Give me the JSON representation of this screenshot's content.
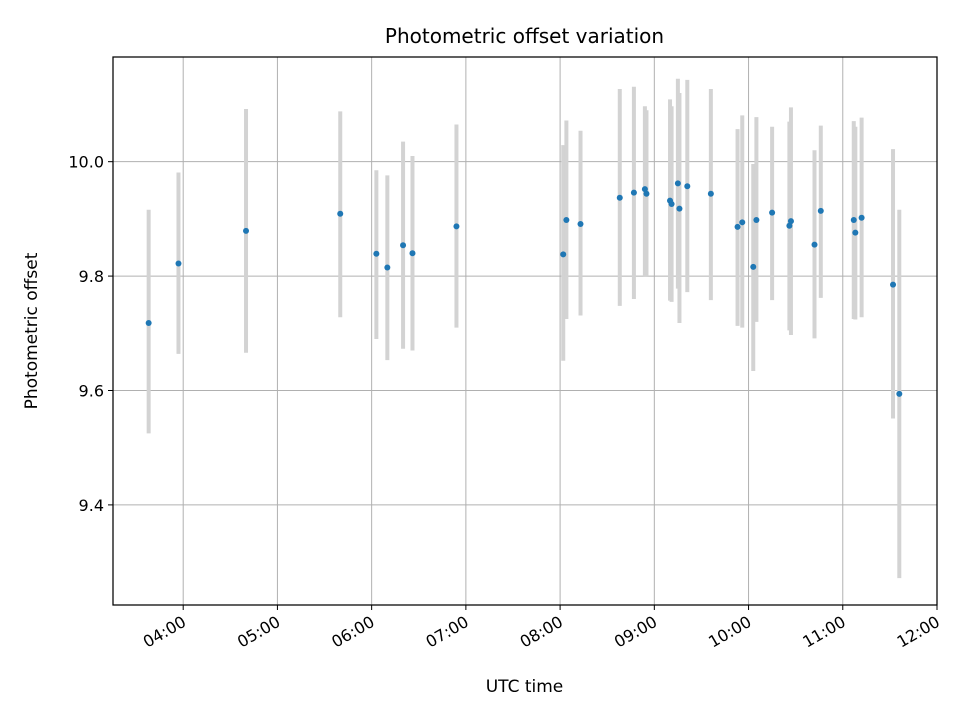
{
  "chart_data": {
    "type": "scatter",
    "title": "Photometric offset variation",
    "xlabel": "UTC time",
    "ylabel": "Photometric offset",
    "x_tick_labels": [
      "04:00",
      "05:00",
      "06:00",
      "07:00",
      "08:00",
      "09:00",
      "10:00",
      "11:00",
      "12:00"
    ],
    "y_tick_labels": [
      "9.4",
      "9.6",
      "9.8",
      "10.0"
    ],
    "x_ticks_hours": [
      4,
      5,
      6,
      7,
      8,
      9,
      10,
      11,
      12
    ],
    "y_ticks": [
      9.4,
      9.6,
      9.8,
      10.0
    ],
    "xlim_hours": [
      3.255,
      12.0
    ],
    "ylim": [
      9.225,
      10.183
    ],
    "grid": true,
    "colors": {
      "point": "#1f77b4",
      "errorbar": "#d3d3d3",
      "grid": "#b0b0b0"
    },
    "points": [
      {
        "t": "03:38",
        "y": 9.718,
        "err_low": 9.525,
        "err_high": 9.916
      },
      {
        "t": "03:57",
        "y": 9.822,
        "err_low": 9.664,
        "err_high": 9.981
      },
      {
        "t": "04:40",
        "y": 9.879,
        "err_low": 9.666,
        "err_high": 10.092
      },
      {
        "t": "05:40",
        "y": 9.909,
        "err_low": 9.728,
        "err_high": 10.088
      },
      {
        "t": "06:03",
        "y": 9.839,
        "err_low": 9.69,
        "err_high": 9.985
      },
      {
        "t": "06:10",
        "y": 9.815,
        "err_low": 9.653,
        "err_high": 9.976
      },
      {
        "t": "06:20",
        "y": 9.854,
        "err_low": 9.673,
        "err_high": 10.035
      },
      {
        "t": "06:26",
        "y": 9.84,
        "err_low": 9.67,
        "err_high": 10.01
      },
      {
        "t": "06:54",
        "y": 9.887,
        "err_low": 9.71,
        "err_high": 10.065
      },
      {
        "t": "08:02",
        "y": 9.838,
        "err_low": 9.652,
        "err_high": 10.029
      },
      {
        "t": "08:04",
        "y": 9.898,
        "err_low": 9.725,
        "err_high": 10.072
      },
      {
        "t": "08:13",
        "y": 9.891,
        "err_low": 9.731,
        "err_high": 10.054
      },
      {
        "t": "08:38",
        "y": 9.937,
        "err_low": 9.748,
        "err_high": 10.127
      },
      {
        "t": "08:47",
        "y": 9.946,
        "err_low": 9.76,
        "err_high": 10.131
      },
      {
        "t": "08:54",
        "y": 9.952,
        "err_low": 9.8,
        "err_high": 10.097
      },
      {
        "t": "08:55",
        "y": 9.944,
        "err_low": 9.8,
        "err_high": 10.09
      },
      {
        "t": "09:10",
        "y": 9.932,
        "err_low": 9.757,
        "err_high": 10.109
      },
      {
        "t": "09:11",
        "y": 9.926,
        "err_low": 9.755,
        "err_high": 10.097
      },
      {
        "t": "09:15",
        "y": 9.962,
        "err_low": 9.778,
        "err_high": 10.145
      },
      {
        "t": "09:16",
        "y": 9.918,
        "err_low": 9.718,
        "err_high": 10.12
      },
      {
        "t": "09:21",
        "y": 9.957,
        "err_low": 9.772,
        "err_high": 10.143
      },
      {
        "t": "09:36",
        "y": 9.944,
        "err_low": 9.758,
        "err_high": 10.127
      },
      {
        "t": "09:53",
        "y": 9.886,
        "err_low": 9.713,
        "err_high": 10.057
      },
      {
        "t": "09:56",
        "y": 9.894,
        "err_low": 9.71,
        "err_high": 10.081
      },
      {
        "t": "10:03",
        "y": 9.816,
        "err_low": 9.634,
        "err_high": 9.996
      },
      {
        "t": "10:05",
        "y": 9.898,
        "err_low": 9.72,
        "err_high": 10.078
      },
      {
        "t": "10:15",
        "y": 9.911,
        "err_low": 9.758,
        "err_high": 10.061
      },
      {
        "t": "10:26",
        "y": 9.888,
        "err_low": 9.705,
        "err_high": 10.07
      },
      {
        "t": "10:27",
        "y": 9.896,
        "err_low": 9.697,
        "err_high": 10.095
      },
      {
        "t": "10:42",
        "y": 9.855,
        "err_low": 9.691,
        "err_high": 10.02
      },
      {
        "t": "10:46",
        "y": 9.914,
        "err_low": 9.762,
        "err_high": 10.063
      },
      {
        "t": "11:07",
        "y": 9.898,
        "err_low": 9.725,
        "err_high": 10.071
      },
      {
        "t": "11:08",
        "y": 9.876,
        "err_low": 9.724,
        "err_high": 10.061
      },
      {
        "t": "11:12",
        "y": 9.902,
        "err_low": 9.728,
        "err_high": 10.077
      },
      {
        "t": "11:32",
        "y": 9.785,
        "err_low": 9.551,
        "err_high": 10.022
      },
      {
        "t": "11:36",
        "y": 9.594,
        "err_low": 9.272,
        "err_high": 9.916
      }
    ]
  }
}
